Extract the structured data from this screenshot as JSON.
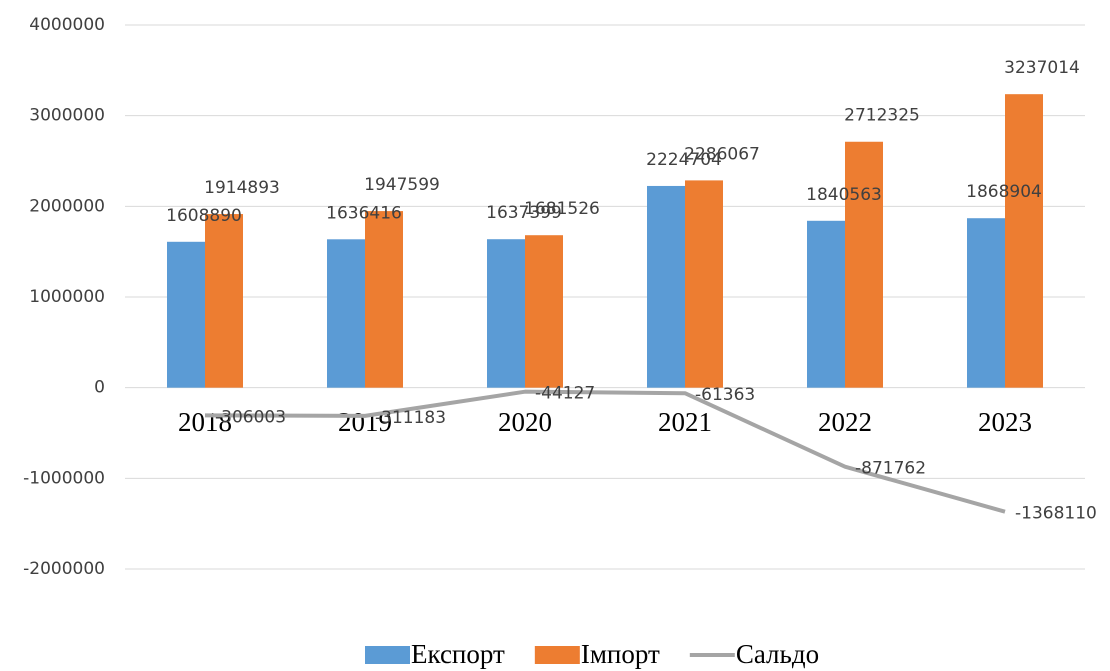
{
  "chart_data": {
    "type": "bar",
    "categories": [
      "2018",
      "2019",
      "2020",
      "2021",
      "2022",
      "2023"
    ],
    "series": [
      {
        "name": "Експорт",
        "type": "bar",
        "color": "#5b9bd5",
        "values": [
          1608890,
          1636416,
          1637399,
          2224704,
          1840563,
          1868904
        ]
      },
      {
        "name": "Імпорт",
        "type": "bar",
        "color": "#ed7d31",
        "values": [
          1914893,
          1947599,
          1681526,
          2286067,
          2712325,
          3237014
        ]
      },
      {
        "name": "Сальдо",
        "type": "line",
        "color": "#a5a5a5",
        "values": [
          -306003,
          -311183,
          -44127,
          -61363,
          -871762,
          -1368110
        ]
      }
    ],
    "ylim": [
      -2000000,
      4000000
    ],
    "yticks": [
      -2000000,
      -1000000,
      0,
      1000000,
      2000000,
      3000000,
      4000000
    ],
    "grid": true,
    "legend": "bottom"
  }
}
